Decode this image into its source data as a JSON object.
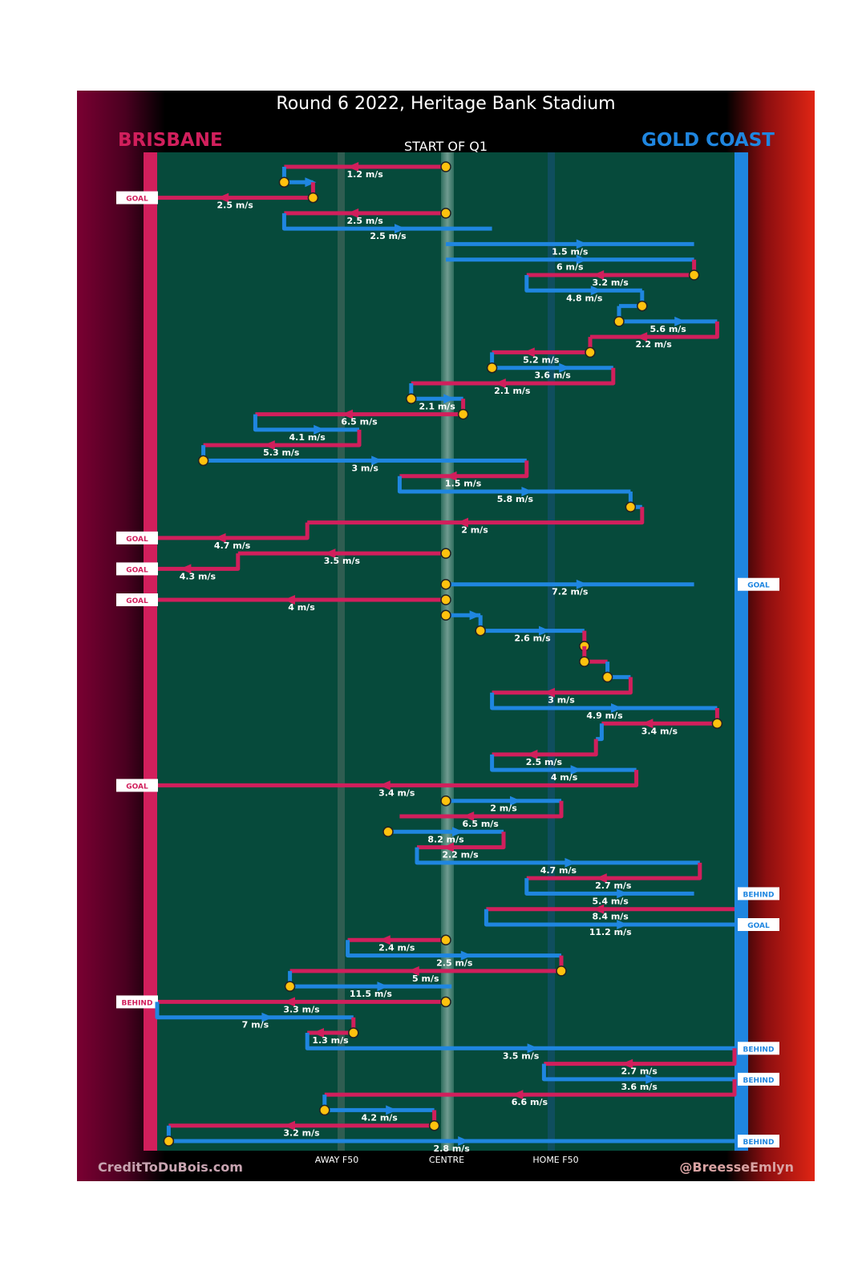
{
  "chart_data": {
    "type": "line",
    "title": "Round 6 2022, Heritage Bank Stadium",
    "subtitle": "START OF Q1",
    "teams": {
      "left": {
        "name": "BRISBANE",
        "color": "#d11f5c"
      },
      "right": {
        "name": "GOLD COAST",
        "color": "#1f86e0"
      }
    },
    "x_axis_labels": [
      "AWAY F50",
      "CENTRE",
      "HOME F50"
    ],
    "credits": {
      "left": "CreditToDuBois.com",
      "right": "@BreesseEmlyn"
    },
    "colors": {
      "home": "#d11f5c",
      "away": "#1f86e0",
      "field": "#064a3b",
      "ball": "#ffc20e"
    },
    "chains": [
      {
        "team": "BRISBANE",
        "start_x": 0.5,
        "end_x": 0.22,
        "speed": "1.2 m/s",
        "start_ball": true
      },
      {
        "team": "GOLD COAST",
        "start_x": 0.22,
        "end_x": 0.27,
        "speed": "",
        "start_ball": true
      },
      {
        "team": "BRISBANE",
        "start_x": 0.27,
        "end_x": 0.0,
        "speed": "2.5 m/s",
        "start_ball": true,
        "outcome": "GOAL"
      },
      {
        "team": "BRISBANE",
        "start_x": 0.5,
        "end_x": 0.22,
        "speed": "2.5 m/s",
        "start_ball": true
      },
      {
        "team": "GOLD COAST",
        "start_x": 0.22,
        "end_x": 0.58,
        "speed": "2.5 m/s"
      },
      {
        "team": "GOLD COAST",
        "start_x": 0.5,
        "end_x": 0.93,
        "speed": "1.5 m/s"
      },
      {
        "team": "GOLD COAST",
        "start_x": 0.5,
        "end_x": 0.93,
        "speed": "6 m/s"
      },
      {
        "team": "BRISBANE",
        "start_x": 0.93,
        "end_x": 0.64,
        "speed": "3.2 m/s",
        "start_ball": true
      },
      {
        "team": "GOLD COAST",
        "start_x": 0.64,
        "end_x": 0.84,
        "speed": "4.8 m/s"
      },
      {
        "team": "GOLD COAST",
        "start_x": 0.84,
        "end_x": 0.8,
        "speed": "",
        "start_ball": true
      },
      {
        "team": "GOLD COAST",
        "start_x": 0.8,
        "end_x": 0.97,
        "speed": "5.6 m/s",
        "start_ball": true
      },
      {
        "team": "BRISBANE",
        "start_x": 0.97,
        "end_x": 0.75,
        "speed": "2.2 m/s"
      },
      {
        "team": "BRISBANE",
        "start_x": 0.75,
        "end_x": 0.58,
        "speed": "5.2 m/s",
        "start_ball": true
      },
      {
        "team": "GOLD COAST",
        "start_x": 0.58,
        "end_x": 0.79,
        "speed": "3.6 m/s",
        "start_ball": true
      },
      {
        "team": "BRISBANE",
        "start_x": 0.79,
        "end_x": 0.44,
        "speed": "2.1 m/s"
      },
      {
        "team": "GOLD COAST",
        "start_x": 0.44,
        "end_x": 0.53,
        "speed": "2.1 m/s",
        "start_ball": true
      },
      {
        "team": "BRISBANE",
        "start_x": 0.53,
        "end_x": 0.17,
        "speed": "6.5 m/s",
        "start_ball": true
      },
      {
        "team": "GOLD COAST",
        "start_x": 0.17,
        "end_x": 0.35,
        "speed": "4.1 m/s"
      },
      {
        "team": "BRISBANE",
        "start_x": 0.35,
        "end_x": 0.08,
        "speed": "5.3 m/s"
      },
      {
        "team": "GOLD COAST",
        "start_x": 0.08,
        "end_x": 0.64,
        "speed": "3 m/s",
        "start_ball": true
      },
      {
        "team": "BRISBANE",
        "start_x": 0.64,
        "end_x": 0.42,
        "speed": "1.5 m/s"
      },
      {
        "team": "GOLD COAST",
        "start_x": 0.42,
        "end_x": 0.82,
        "speed": "5.8 m/s"
      },
      {
        "team": "GOLD COAST",
        "start_x": 0.82,
        "end_x": 0.84,
        "speed": "",
        "start_ball": true
      },
      {
        "team": "BRISBANE",
        "start_x": 0.84,
        "end_x": 0.26,
        "speed": "2 m/s"
      },
      {
        "team": "BRISBANE",
        "start_x": 0.26,
        "end_x": 0.0,
        "speed": "4.7 m/s",
        "outcome": "GOAL"
      },
      {
        "team": "BRISBANE",
        "start_x": 0.5,
        "end_x": 0.14,
        "speed": "3.5 m/s",
        "start_ball": true
      },
      {
        "team": "BRISBANE",
        "start_x": 0.14,
        "end_x": 0.0,
        "speed": "4.3 m/s",
        "outcome": "GOAL"
      },
      {
        "team": "GOLD COAST",
        "start_x": 0.5,
        "end_x": 0.93,
        "speed": "7.2 m/s",
        "start_ball": true,
        "outcome": "GOAL"
      },
      {
        "team": "BRISBANE",
        "start_x": 0.5,
        "end_x": 0.0,
        "speed": "4 m/s",
        "start_ball": true,
        "outcome": "GOAL"
      },
      {
        "team": "GOLD COAST",
        "start_x": 0.5,
        "end_x": 0.56,
        "speed": "",
        "start_ball": true
      },
      {
        "team": "GOLD COAST",
        "start_x": 0.56,
        "end_x": 0.74,
        "speed": "2.6 m/s",
        "start_ball": true
      },
      {
        "team": "BRISBANE",
        "start_x": 0.74,
        "end_x": 0.74,
        "speed": "",
        "start_ball": true
      },
      {
        "team": "BRISBANE",
        "start_x": 0.74,
        "end_x": 0.78,
        "speed": "",
        "start_ball": true
      },
      {
        "team": "GOLD COAST",
        "start_x": 0.78,
        "end_x": 0.82,
        "speed": "",
        "start_ball": true
      },
      {
        "team": "BRISBANE",
        "start_x": 0.82,
        "end_x": 0.58,
        "speed": "3 m/s"
      },
      {
        "team": "GOLD COAST",
        "start_x": 0.58,
        "end_x": 0.97,
        "speed": "4.9 m/s"
      },
      {
        "team": "BRISBANE",
        "start_x": 0.97,
        "end_x": 0.77,
        "speed": "3.4 m/s",
        "start_ball": true
      },
      {
        "team": "GOLD COAST",
        "start_x": 0.77,
        "end_x": 0.76,
        "speed": ""
      },
      {
        "team": "BRISBANE",
        "start_x": 0.76,
        "end_x": 0.58,
        "speed": "2.5 m/s"
      },
      {
        "team": "GOLD COAST",
        "start_x": 0.58,
        "end_x": 0.83,
        "speed": "4 m/s"
      },
      {
        "team": "BRISBANE",
        "start_x": 0.83,
        "end_x": 0.0,
        "speed": "3.4 m/s",
        "outcome": "GOAL"
      },
      {
        "team": "GOLD COAST",
        "start_x": 0.5,
        "end_x": 0.7,
        "speed": "2 m/s",
        "start_ball": true
      },
      {
        "team": "BRISBANE",
        "start_x": 0.7,
        "end_x": 0.42,
        "speed": "6.5 m/s"
      },
      {
        "team": "GOLD COAST",
        "start_x": 0.4,
        "end_x": 0.6,
        "speed": "8.2 m/s",
        "start_ball": true
      },
      {
        "team": "BRISBANE",
        "start_x": 0.6,
        "end_x": 0.45,
        "speed": "2.2 m/s"
      },
      {
        "team": "GOLD COAST",
        "start_x": 0.45,
        "end_x": 0.94,
        "speed": "4.7 m/s"
      },
      {
        "team": "BRISBANE",
        "start_x": 0.94,
        "end_x": 0.64,
        "speed": "2.7 m/s"
      },
      {
        "team": "GOLD COAST",
        "start_x": 0.64,
        "end_x": 0.93,
        "speed": "5.4 m/s",
        "outcome": "BEHIND"
      },
      {
        "team": "BRISBANE",
        "start_x": 1.0,
        "end_x": 0.57,
        "speed": "8.4 m/s"
      },
      {
        "team": "GOLD COAST",
        "start_x": 0.57,
        "end_x": 1.0,
        "speed": "11.2 m/s",
        "outcome": "GOAL"
      },
      {
        "team": "BRISBANE",
        "start_x": 0.5,
        "end_x": 0.33,
        "speed": "2.4 m/s",
        "start_ball": true
      },
      {
        "team": "GOLD COAST",
        "start_x": 0.33,
        "end_x": 0.7,
        "speed": "2.5 m/s"
      },
      {
        "team": "BRISBANE",
        "start_x": 0.7,
        "end_x": 0.23,
        "speed": "5 m/s",
        "start_ball": true
      },
      {
        "team": "GOLD COAST",
        "start_x": 0.23,
        "end_x": 0.51,
        "speed": "11.5 m/s",
        "start_ball": true
      },
      {
        "team": "BRISBANE",
        "start_x": 0.5,
        "end_x": 0.0,
        "speed": "3.3 m/s",
        "start_ball": true,
        "outcome": "BEHIND"
      },
      {
        "team": "GOLD COAST",
        "start_x": 0.0,
        "end_x": 0.34,
        "speed": "7 m/s"
      },
      {
        "team": "BRISBANE",
        "start_x": 0.34,
        "end_x": 0.26,
        "speed": "1.3 m/s",
        "start_ball": true
      },
      {
        "team": "GOLD COAST",
        "start_x": 0.26,
        "end_x": 1.0,
        "speed": "3.5 m/s",
        "outcome": "BEHIND"
      },
      {
        "team": "BRISBANE",
        "start_x": 1.0,
        "end_x": 0.67,
        "speed": "2.7 m/s"
      },
      {
        "team": "GOLD COAST",
        "start_x": 0.67,
        "end_x": 1.0,
        "speed": "3.6 m/s",
        "outcome": "BEHIND"
      },
      {
        "team": "BRISBANE",
        "start_x": 1.0,
        "end_x": 0.29,
        "speed": "6.6 m/s"
      },
      {
        "team": "GOLD COAST",
        "start_x": 0.29,
        "end_x": 0.48,
        "speed": "4.2 m/s",
        "start_ball": true
      },
      {
        "team": "BRISBANE",
        "start_x": 0.48,
        "end_x": 0.02,
        "speed": "3.2 m/s",
        "start_ball": true
      },
      {
        "team": "GOLD COAST",
        "start_x": 0.02,
        "end_x": 1.0,
        "speed": "2.8 m/s",
        "start_ball": true,
        "outcome": "BEHIND"
      }
    ]
  }
}
